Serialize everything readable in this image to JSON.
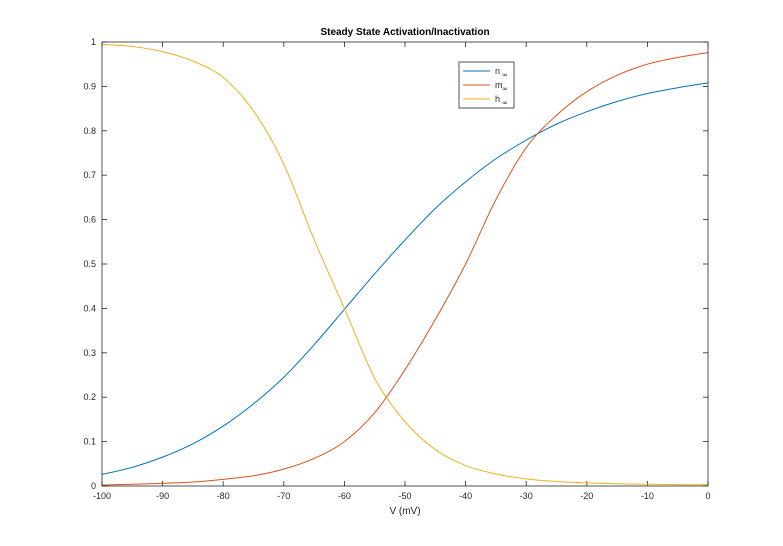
{
  "chart_data": {
    "type": "line",
    "title": "Steady State Activation/Inactivation",
    "xlabel": "V (mV)",
    "ylabel": "",
    "xlim": [
      -100,
      0
    ],
    "ylim": [
      0,
      1
    ],
    "xticks": [
      -100,
      -90,
      -80,
      -70,
      -60,
      -50,
      -40,
      -30,
      -20,
      -10,
      0
    ],
    "yticks": [
      0,
      0.1,
      0.2,
      0.3,
      0.4,
      0.5,
      0.6,
      0.7,
      0.8,
      0.9,
      1
    ],
    "grid": false,
    "legend_position": "top-right",
    "x": [
      -100,
      -95,
      -90,
      -85,
      -80,
      -75,
      -70,
      -65,
      -60,
      -55,
      -50,
      -45,
      -40,
      -35,
      -30,
      -25,
      -20,
      -15,
      -10,
      -5,
      0
    ],
    "series": [
      {
        "name": "n",
        "name_subscript": "∞",
        "color": "#0072BD",
        "values": [
          0.026,
          0.042,
          0.065,
          0.095,
          0.135,
          0.185,
          0.245,
          0.318,
          0.398,
          0.478,
          0.554,
          0.625,
          0.685,
          0.737,
          0.779,
          0.815,
          0.843,
          0.866,
          0.884,
          0.897,
          0.908
        ]
      },
      {
        "name": "m",
        "name_subscript": "∞",
        "color": "#D95319",
        "values": [
          0.002,
          0.004,
          0.006,
          0.009,
          0.015,
          0.023,
          0.038,
          0.062,
          0.1,
          0.165,
          0.262,
          0.375,
          0.5,
          0.645,
          0.762,
          0.835,
          0.888,
          0.925,
          0.95,
          0.965,
          0.976
        ]
      },
      {
        "name": "h",
        "name_subscript": "∞",
        "color": "#EDB120",
        "values": [
          0.995,
          0.99,
          0.978,
          0.957,
          0.92,
          0.845,
          0.725,
          0.555,
          0.4,
          0.243,
          0.145,
          0.082,
          0.046,
          0.027,
          0.016,
          0.01,
          0.007,
          0.005,
          0.004,
          0.003,
          0.003
        ]
      }
    ]
  }
}
